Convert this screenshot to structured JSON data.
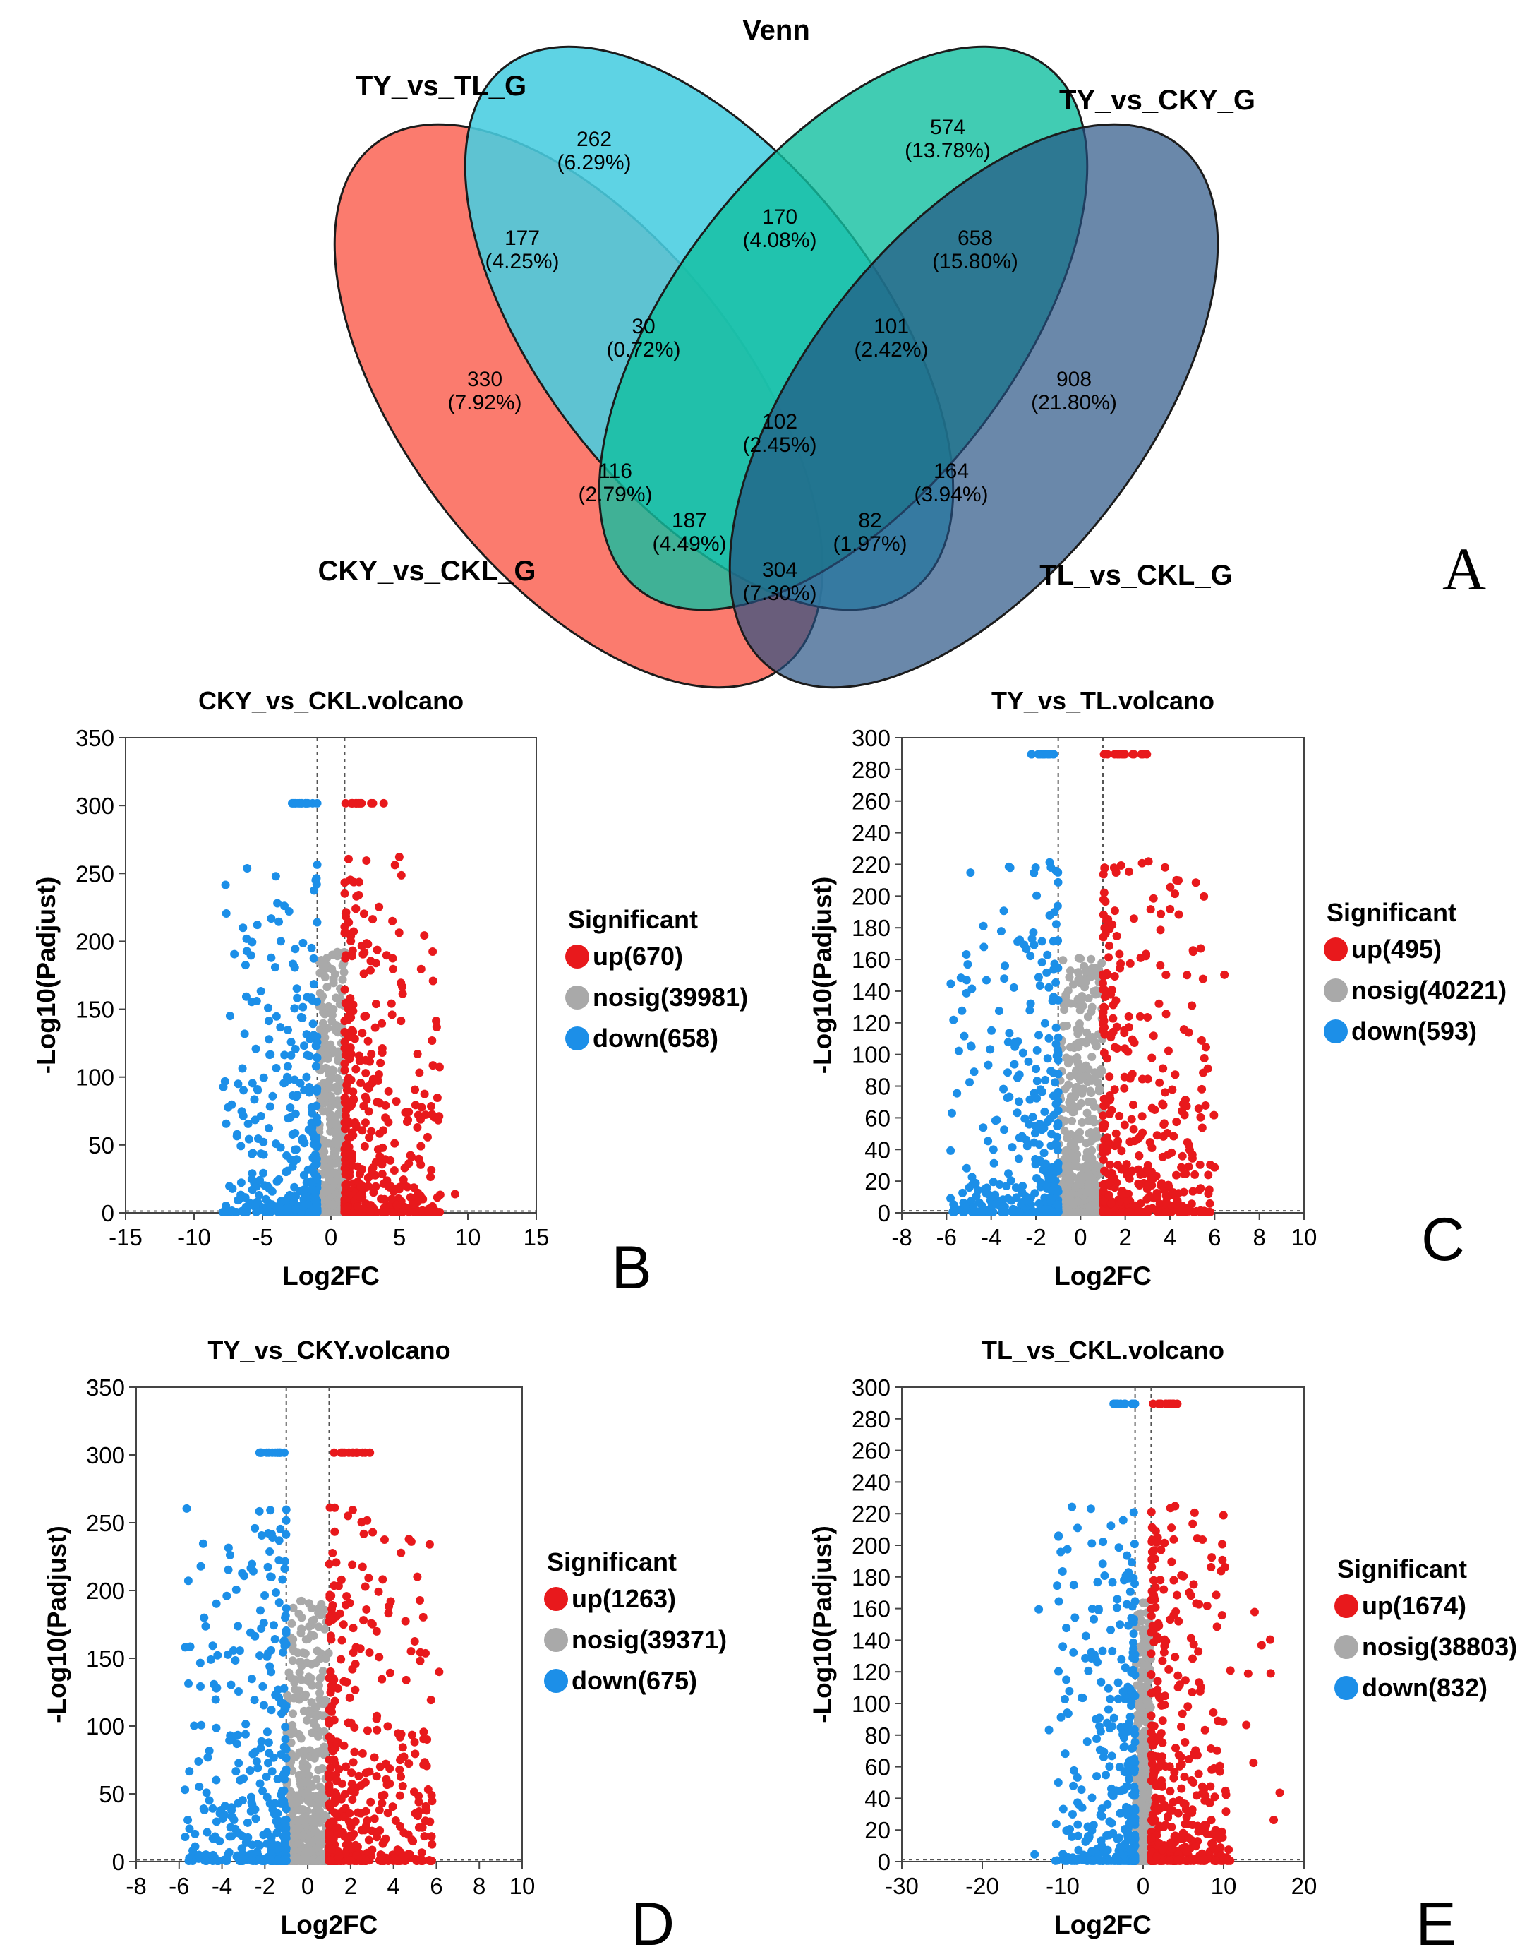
{
  "venn": {
    "title": "Venn",
    "panel_letter": "A",
    "sets": [
      {
        "name": "TY_vs_TL_G",
        "color": "#48cde0"
      },
      {
        "name": "TY_vs_CKY_G",
        "color": "#11bfa0"
      },
      {
        "name": "TL_vs_CKL_G",
        "color": "#60809f"
      },
      {
        "name": "CKY_vs_CKL_G",
        "color": "#fb7b6e"
      }
    ],
    "regions": [
      {
        "id": "tytl_only",
        "count": "262",
        "pct": "(6.29%)"
      },
      {
        "id": "tycky_only",
        "count": "574",
        "pct": "(13.78%)"
      },
      {
        "id": "tytl_tycky",
        "count": "170",
        "pct": "(4.08%)"
      },
      {
        "id": "tytl_cky",
        "count": "177",
        "pct": "(4.25%)"
      },
      {
        "id": "tycky_tl",
        "count": "658",
        "pct": "(15.80%)"
      },
      {
        "id": "cky_only",
        "count": "330",
        "pct": "(7.92%)"
      },
      {
        "id": "tl_only",
        "count": "908",
        "pct": "(21.80%)"
      },
      {
        "id": "tytl_tycky_cky",
        "count": "30",
        "pct": "(0.72%)"
      },
      {
        "id": "tytl_tycky_tl",
        "count": "101",
        "pct": "(2.42%)"
      },
      {
        "id": "all_four",
        "count": "102",
        "pct": "(2.45%)"
      },
      {
        "id": "tycky_cky",
        "count": "116",
        "pct": "(2.79%)"
      },
      {
        "id": "tytl_tl",
        "count": "164",
        "pct": "(3.94%)"
      },
      {
        "id": "tycky_cky_tl",
        "count": "187",
        "pct": "(4.49%)"
      },
      {
        "id": "tytl_cky_tl",
        "count": "82",
        "pct": "(1.97%)"
      },
      {
        "id": "cky_tl",
        "count": "304",
        "pct": "(7.30%)"
      }
    ]
  },
  "chart_data": [
    {
      "type": "scatter",
      "panel_letter": "B",
      "title": "CKY_vs_CKL.volcano",
      "xlabel": "Log2FC",
      "ylabel": "-Log10(Padjust)",
      "xlim": [
        -15,
        15
      ],
      "ylim": [
        0,
        350
      ],
      "xticks": [
        -15,
        -10,
        -5,
        0,
        5,
        10,
        15
      ],
      "yticks": [
        0,
        50,
        100,
        150,
        200,
        250,
        300,
        350
      ],
      "fc_threshold": 1,
      "legend_title": "Significant",
      "series": [
        {
          "name": "up(670)",
          "color": "#e8191c",
          "count": 670
        },
        {
          "name": "nosig(39981)",
          "color": "#a9a9a9",
          "count": 39981
        },
        {
          "name": "down(658)",
          "color": "#1c8fe8",
          "count": 658
        }
      ]
    },
    {
      "type": "scatter",
      "panel_letter": "C",
      "title": "TY_vs_TL.volcano",
      "xlabel": "Log2FC",
      "ylabel": "-Log10(Padjust)",
      "xlim": [
        -8,
        10
      ],
      "ylim": [
        0,
        300
      ],
      "xticks": [
        -8,
        -6,
        -4,
        -2,
        0,
        2,
        4,
        6,
        8,
        10
      ],
      "yticks": [
        0,
        20,
        40,
        60,
        80,
        100,
        120,
        140,
        160,
        180,
        200,
        220,
        240,
        260,
        280,
        300
      ],
      "fc_threshold": 1,
      "legend_title": "Significant",
      "series": [
        {
          "name": "up(495)",
          "color": "#e8191c",
          "count": 495
        },
        {
          "name": "nosig(40221)",
          "color": "#a9a9a9",
          "count": 40221
        },
        {
          "name": "down(593)",
          "color": "#1c8fe8",
          "count": 593
        }
      ]
    },
    {
      "type": "scatter",
      "panel_letter": "D",
      "title": "TY_vs_CKY.volcano",
      "xlabel": "Log2FC",
      "ylabel": "-Log10(Padjust)",
      "xlim": [
        -8,
        10
      ],
      "ylim": [
        0,
        350
      ],
      "xticks": [
        -8,
        -6,
        -4,
        -2,
        0,
        2,
        4,
        6,
        8,
        10
      ],
      "yticks": [
        0,
        50,
        100,
        150,
        200,
        250,
        300,
        350
      ],
      "fc_threshold": 1,
      "legend_title": "Significant",
      "series": [
        {
          "name": "up(1263)",
          "color": "#e8191c",
          "count": 1263
        },
        {
          "name": "nosig(39371)",
          "color": "#a9a9a9",
          "count": 39371
        },
        {
          "name": "down(675)",
          "color": "#1c8fe8",
          "count": 675
        }
      ]
    },
    {
      "type": "scatter",
      "panel_letter": "E",
      "title": "TL_vs_CKL.volcano",
      "xlabel": "Log2FC",
      "ylabel": "-Log10(Padjust)",
      "xlim": [
        -30,
        20
      ],
      "ylim": [
        0,
        300
      ],
      "xticks": [
        -30,
        -20,
        -10,
        0,
        10,
        20
      ],
      "yticks": [
        0,
        20,
        40,
        60,
        80,
        100,
        120,
        140,
        160,
        180,
        200,
        220,
        240,
        260,
        280,
        300
      ],
      "fc_threshold": 1,
      "legend_title": "Significant",
      "series": [
        {
          "name": "up(1674)",
          "color": "#e8191c",
          "count": 1674
        },
        {
          "name": "nosig(38803)",
          "color": "#a9a9a9",
          "count": 38803
        },
        {
          "name": "down(832)",
          "color": "#1c8fe8",
          "count": 832
        }
      ]
    }
  ]
}
